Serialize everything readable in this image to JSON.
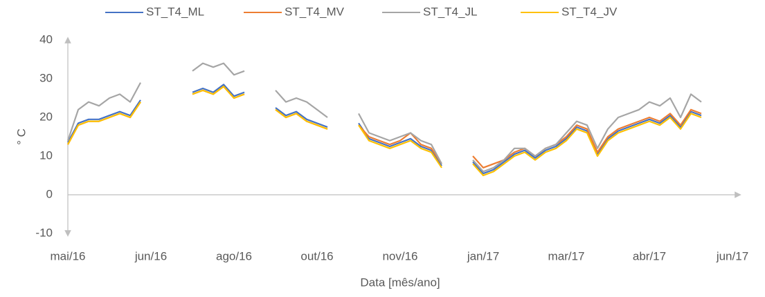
{
  "chart_data": {
    "type": "line",
    "xlabel": "Data [mês/ano]",
    "ylabel": "° C",
    "categories": [
      "mai/16",
      null,
      null,
      null,
      null,
      null,
      null,
      null,
      "jun/16",
      null,
      null,
      null,
      null,
      null,
      null,
      null,
      "ago/16",
      null,
      null,
      null,
      null,
      null,
      null,
      null,
      "out/16",
      null,
      null,
      null,
      null,
      null,
      null,
      null,
      "nov/16",
      null,
      null,
      null,
      null,
      null,
      null,
      null,
      "jan/17",
      null,
      null,
      null,
      null,
      null,
      null,
      null,
      "mar/17",
      null,
      null,
      null,
      null,
      null,
      null,
      null,
      "abr/17",
      null,
      null,
      null,
      null,
      null,
      null,
      null,
      "jun/17"
    ],
    "ylim": [
      -10,
      40
    ],
    "yticks": [
      -10,
      0,
      10,
      20,
      30,
      40
    ],
    "legend": "top",
    "series": [
      {
        "name": "ST_T4_ML",
        "color": "#4472c4",
        "values": [
          13.5,
          18.5,
          19.5,
          19.5,
          20.5,
          21.5,
          20.5,
          24.5,
          null,
          null,
          null,
          null,
          26.5,
          27.5,
          26.5,
          28.5,
          25.5,
          26.5,
          null,
          null,
          22.5,
          20.5,
          21.5,
          19.5,
          18.5,
          17.5,
          null,
          null,
          18.5,
          14.5,
          13.5,
          12.5,
          13.5,
          14.5,
          12.5,
          11.5,
          7.5,
          null,
          null,
          8.5,
          5.5,
          6.5,
          8.5,
          10.5,
          11.5,
          9.5,
          11.5,
          12.5,
          14.5,
          17.5,
          16.5,
          10.5,
          14.5,
          16.5,
          17.5,
          18.5,
          19.5,
          18.5,
          20.5,
          17.5,
          21.5,
          20.5,
          null,
          null,
          null
        ]
      },
      {
        "name": "ST_T4_MV",
        "color": "#ed7d31",
        "values": [
          13,
          18,
          19,
          19,
          20,
          21,
          20,
          24,
          null,
          null,
          null,
          null,
          26,
          27,
          26,
          28,
          25,
          26,
          null,
          null,
          22,
          20,
          21,
          19,
          18,
          17,
          null,
          null,
          18,
          15,
          14,
          13,
          14,
          16,
          13,
          12,
          8,
          null,
          null,
          10,
          7,
          8,
          9,
          11,
          12,
          10,
          12,
          13,
          15,
          18,
          17,
          11,
          15,
          17,
          18,
          19,
          20,
          19,
          21,
          18,
          22,
          21,
          null,
          null,
          null
        ]
      },
      {
        "name": "ST_T4_JL",
        "color": "#a5a5a5",
        "values": [
          14,
          22,
          24,
          23,
          25,
          26,
          24,
          29,
          null,
          null,
          null,
          null,
          32,
          34,
          33,
          34,
          31,
          32,
          null,
          null,
          27,
          24,
          25,
          24,
          22,
          20,
          null,
          null,
          21,
          16,
          15,
          14,
          15,
          16,
          14,
          13,
          8,
          null,
          null,
          9,
          6,
          7,
          9,
          12,
          12,
          10,
          12,
          13,
          16,
          19,
          18,
          12,
          17,
          20,
          21,
          22,
          24,
          23,
          25,
          20,
          26,
          24,
          null,
          null,
          null
        ]
      },
      {
        "name": "ST_T4_JV",
        "color": "#ffc000",
        "values": [
          13,
          18,
          19,
          19,
          20,
          21,
          20,
          24,
          null,
          null,
          null,
          null,
          26,
          27,
          26,
          28,
          25,
          26,
          null,
          null,
          22,
          20,
          21,
          19,
          18,
          17,
          null,
          null,
          18,
          14,
          13,
          12,
          13,
          14,
          12,
          11,
          7,
          null,
          null,
          8,
          5,
          6,
          8,
          10,
          11,
          9,
          11,
          12,
          14,
          17,
          16,
          10,
          14,
          16,
          17,
          18,
          19,
          18,
          20,
          17,
          21,
          20,
          null,
          null,
          null
        ]
      }
    ]
  }
}
